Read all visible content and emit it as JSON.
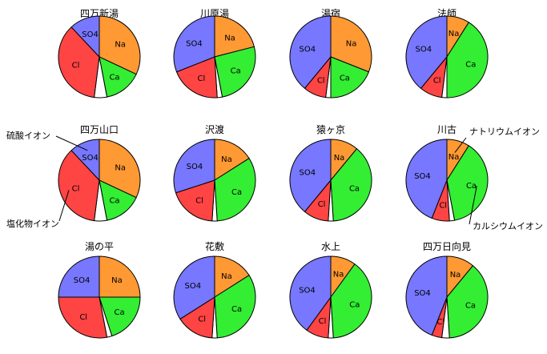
{
  "colors": {
    "Na": "#ff9933",
    "Ca": "#33ee33",
    "Cl": "#ff4444",
    "SO4": "#7777ff",
    "other": "#ffffff",
    "outline": "#000000"
  },
  "chart_data": {
    "type": "pie",
    "slice_order": [
      "Na",
      "Ca",
      "other",
      "Cl",
      "SO4"
    ],
    "slice_labels": {
      "Na": "Na",
      "Ca": "Ca",
      "Cl": "Cl",
      "SO4": "SO4"
    },
    "charts": [
      {
        "title": "四万新湯",
        "values": {
          "Na": 0.32,
          "Ca": 0.15,
          "other": 0.05,
          "Cl": 0.36,
          "SO4": 0.12
        }
      },
      {
        "title": "川原湯",
        "values": {
          "Na": 0.21,
          "Ca": 0.26,
          "other": 0.02,
          "Cl": 0.2,
          "SO4": 0.31
        }
      },
      {
        "title": "湯宿",
        "values": {
          "Na": 0.31,
          "Ca": 0.19,
          "other": 0.02,
          "Cl": 0.09,
          "SO4": 0.39
        }
      },
      {
        "title": "法師",
        "values": {
          "Na": 0.09,
          "Ca": 0.41,
          "other": 0.02,
          "Cl": 0.09,
          "SO4": 0.39
        }
      },
      {
        "title": "四万山口",
        "values": {
          "Na": 0.32,
          "Ca": 0.15,
          "other": 0.05,
          "Cl": 0.36,
          "SO4": 0.12
        }
      },
      {
        "title": "沢渡",
        "values": {
          "Na": 0.16,
          "Ca": 0.33,
          "other": 0.02,
          "Cl": 0.19,
          "SO4": 0.3
        }
      },
      {
        "title": "猿ヶ京",
        "values": {
          "Na": 0.11,
          "Ca": 0.38,
          "other": 0.02,
          "Cl": 0.1,
          "SO4": 0.39
        }
      },
      {
        "title": "川古",
        "values": {
          "Na": 0.09,
          "Ca": 0.38,
          "other": 0.02,
          "Cl": 0.07,
          "SO4": 0.44
        }
      },
      {
        "title": "湯の平",
        "values": {
          "Na": 0.25,
          "Ca": 0.2,
          "other": 0.02,
          "Cl": 0.28,
          "SO4": 0.25
        }
      },
      {
        "title": "花敷",
        "values": {
          "Na": 0.16,
          "Ca": 0.33,
          "other": 0.02,
          "Cl": 0.15,
          "SO4": 0.34
        }
      },
      {
        "title": "水上",
        "values": {
          "Na": 0.1,
          "Ca": 0.39,
          "other": 0.02,
          "Cl": 0.09,
          "SO4": 0.4
        }
      },
      {
        "title": "四万日向見",
        "values": {
          "Na": 0.11,
          "Ca": 0.38,
          "other": 0.03,
          "Cl": 0.04,
          "SO4": 0.44
        }
      }
    ],
    "annotations": [
      {
        "text": "硫酸イオン",
        "chart": 4,
        "ion": "SO4"
      },
      {
        "text": "塩化物イオン",
        "chart": 4,
        "ion": "Cl"
      },
      {
        "text": "ナトリウムイオン",
        "chart": 7,
        "ion": "Na"
      },
      {
        "text": "カルシウムイオン",
        "chart": 7,
        "ion": "Ca"
      }
    ]
  }
}
